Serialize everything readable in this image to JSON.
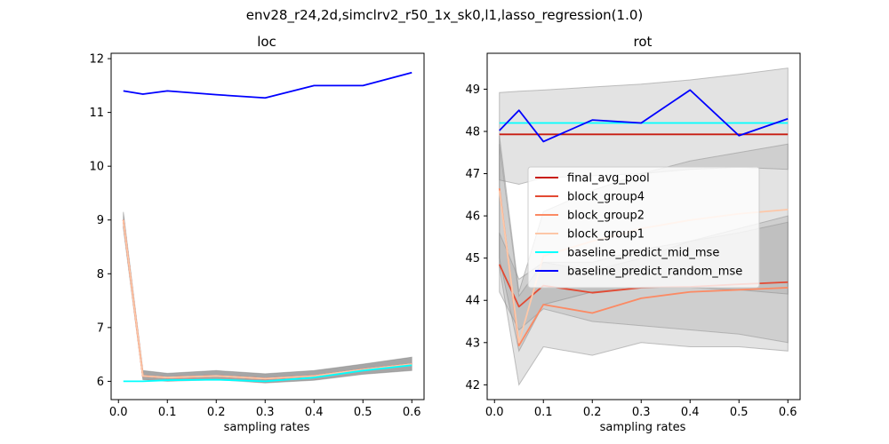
{
  "suptitle": "env28_r24,2d,simclrv2_r50_1x_sk0,l1,lasso_regression(1.0)",
  "chart_data": [
    {
      "type": "line",
      "title": "loc",
      "xlabel": "sampling rates",
      "ylabel": "",
      "x": [
        0.01,
        0.05,
        0.1,
        0.2,
        0.3,
        0.4,
        0.5,
        0.6
      ],
      "xlim": [
        -0.015,
        0.625
      ],
      "ylim": [
        5.66,
        12.1
      ],
      "xticks": [
        0.0,
        0.1,
        0.2,
        0.3,
        0.4,
        0.5,
        0.6
      ],
      "xtick_labels": [
        "0.0",
        "0.1",
        "0.2",
        "0.3",
        "0.4",
        "0.5",
        "0.6"
      ],
      "yticks": [
        6,
        7,
        8,
        9,
        10,
        11,
        12
      ],
      "ytick_labels": [
        "6",
        "7",
        "8",
        "9",
        "10",
        "11",
        "12"
      ],
      "legend": false,
      "series": [
        {
          "name": "final_avg_pool",
          "color": "#c81d11",
          "values": [
            9.0,
            6.1,
            6.07,
            6.1,
            6.05,
            6.1,
            6.22,
            6.32
          ],
          "band_lo": [
            8.85,
            6.03,
            6.0,
            6.03,
            5.97,
            6.02,
            6.13,
            6.2
          ],
          "band_hi": [
            9.15,
            6.2,
            6.15,
            6.2,
            6.14,
            6.2,
            6.32,
            6.45
          ]
        },
        {
          "name": "block_group4",
          "color": "#e34a33",
          "values": [
            9.0,
            6.1,
            6.07,
            6.1,
            6.05,
            6.1,
            6.22,
            6.32
          ]
        },
        {
          "name": "block_group2",
          "color": "#fb8a64",
          "values": [
            9.0,
            6.1,
            6.07,
            6.1,
            6.05,
            6.1,
            6.22,
            6.32
          ]
        },
        {
          "name": "block_group1",
          "color": "#fdc7a8",
          "values": [
            9.0,
            6.1,
            6.07,
            6.1,
            6.05,
            6.1,
            6.22,
            6.32
          ]
        },
        {
          "name": "baseline_predict_mid_mse",
          "color": "#00ffff",
          "values": [
            6.0,
            6.0,
            6.02,
            6.03,
            6.0,
            6.07,
            6.2,
            6.3
          ]
        },
        {
          "name": "baseline_predict_random_mse",
          "color": "#0000ff",
          "values": [
            11.4,
            11.34,
            11.4,
            11.33,
            11.27,
            11.5,
            11.5,
            11.74
          ]
        }
      ]
    },
    {
      "type": "line",
      "title": "rot",
      "xlabel": "sampling rates",
      "ylabel": "",
      "x": [
        0.01,
        0.05,
        0.1,
        0.2,
        0.3,
        0.4,
        0.5,
        0.6
      ],
      "xlim": [
        -0.015,
        0.625
      ],
      "ylim": [
        41.65,
        49.85
      ],
      "xticks": [
        0.0,
        0.1,
        0.2,
        0.3,
        0.4,
        0.5,
        0.6
      ],
      "xtick_labels": [
        "0.0",
        "0.1",
        "0.2",
        "0.3",
        "0.4",
        "0.5",
        "0.6"
      ],
      "yticks": [
        42,
        43,
        44,
        45,
        46,
        47,
        48,
        49
      ],
      "ytick_labels": [
        "42",
        "43",
        "44",
        "45",
        "46",
        "47",
        "48",
        "49"
      ],
      "legend": true,
      "legend_position": "center-right",
      "series": [
        {
          "name": "final_avg_pool",
          "color": "#c81d11",
          "values": [
            47.93,
            47.93,
            47.93,
            47.93,
            47.93,
            47.93,
            47.93,
            47.93
          ]
        },
        {
          "name": "block_group4",
          "color": "#e34a33",
          "values": [
            44.85,
            43.85,
            44.35,
            44.18,
            44.3,
            44.32,
            44.38,
            44.43
          ],
          "band_lo": [
            44.2,
            43.3,
            43.8,
            43.5,
            43.4,
            43.3,
            43.2,
            43.0
          ],
          "band_hi": [
            45.6,
            44.5,
            44.9,
            44.9,
            45.2,
            45.4,
            45.6,
            45.85
          ]
        },
        {
          "name": "block_group2",
          "color": "#fb8a64",
          "values": [
            46.65,
            42.93,
            43.9,
            43.7,
            44.05,
            44.2,
            44.25,
            44.3
          ],
          "band_lo": [
            44.8,
            42.0,
            42.9,
            42.7,
            43.0,
            42.9,
            42.9,
            42.8
          ],
          "band_hi": [
            47.7,
            44.1,
            44.9,
            44.7,
            45.0,
            45.4,
            45.7,
            46.0
          ]
        },
        {
          "name": "block_group1",
          "color": "#fdc7a8",
          "values": [
            46.6,
            43.0,
            45.05,
            45.4,
            45.7,
            45.9,
            46.05,
            46.15
          ],
          "band_lo": [
            45.0,
            42.8,
            43.9,
            44.2,
            44.3,
            44.3,
            44.25,
            44.15
          ],
          "band_hi": [
            47.9,
            44.2,
            46.1,
            46.6,
            47.0,
            47.3,
            47.5,
            47.7
          ]
        },
        {
          "name": "baseline_predict_mid_mse",
          "color": "#00ffff",
          "values": [
            48.2,
            48.2,
            48.2,
            48.2,
            48.2,
            48.2,
            48.2,
            48.2
          ]
        },
        {
          "name": "baseline_predict_random_mse",
          "color": "#0000ff",
          "values": [
            48.02,
            48.5,
            47.76,
            48.27,
            48.2,
            48.98,
            47.9,
            48.3
          ],
          "band_lo": [
            46.85,
            46.75,
            46.9,
            46.95,
            47.0,
            47.1,
            47.15,
            47.1
          ],
          "band_hi": [
            48.92,
            48.95,
            48.98,
            49.05,
            49.12,
            49.22,
            49.35,
            49.5
          ]
        }
      ]
    }
  ]
}
